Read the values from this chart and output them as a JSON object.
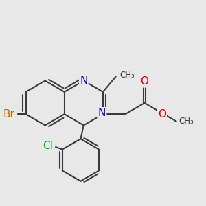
{
  "bg_color": "#e8e8e8",
  "bond_color": "#3a3a3a",
  "bond_width": 1.5,
  "atom_colors": {
    "N": "#0000cc",
    "Br": "#cc6600",
    "Cl": "#00aa00",
    "O": "#cc0000",
    "C": "#3a3a3a"
  },
  "font_size": 11
}
